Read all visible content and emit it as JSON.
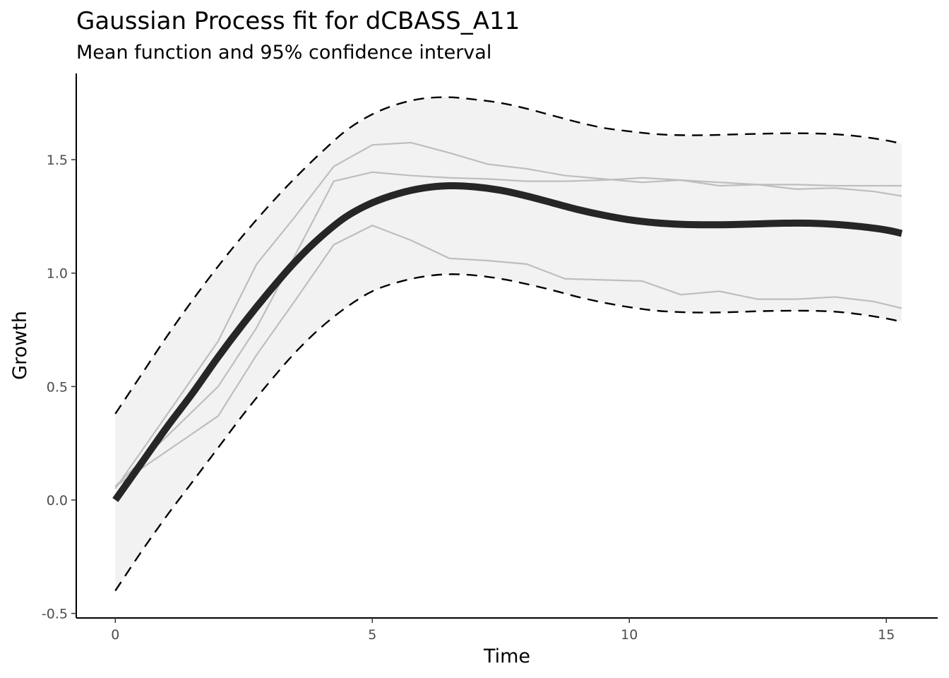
{
  "chart_data": {
    "type": "line",
    "title": "Gaussian Process fit for dCBASS_A11",
    "subtitle": "Mean function and 95% confidence interval",
    "xlabel": "Time",
    "ylabel": "Growth",
    "xlim": [
      -0.76,
      16.0
    ],
    "ylim": [
      -0.52,
      1.88
    ],
    "x_ticks": [
      0,
      5,
      10,
      15
    ],
    "x_tick_labels": [
      "0",
      "5",
      "10",
      "15"
    ],
    "y_ticks": [
      -0.5,
      0.0,
      0.5,
      1.0,
      1.5
    ],
    "y_tick_labels": [
      "-0.5",
      "0.0",
      "0.5",
      "1.0",
      "1.5"
    ],
    "grid": false,
    "legend": "none",
    "colors": {
      "mean": "#262626",
      "ci_band": "#f2f2f2",
      "ci_bounds": "#000000",
      "replicates": "#bebebe",
      "axis": "#000000",
      "tick_label": "#4d4d4d"
    },
    "mean": {
      "x": [
        0,
        0.5,
        1,
        1.5,
        2,
        2.5,
        3,
        3.5,
        4,
        4.5,
        5,
        5.5,
        6,
        6.5,
        7,
        7.5,
        8,
        8.5,
        9,
        9.5,
        10,
        10.5,
        11,
        11.5,
        12,
        12.5,
        13,
        13.5,
        14,
        14.5,
        15,
        15.3
      ],
      "y": [
        0.0,
        0.16,
        0.32,
        0.47,
        0.63,
        0.78,
        0.92,
        1.05,
        1.16,
        1.25,
        1.31,
        1.35,
        1.375,
        1.385,
        1.38,
        1.365,
        1.34,
        1.31,
        1.28,
        1.255,
        1.235,
        1.222,
        1.215,
        1.213,
        1.214,
        1.217,
        1.22,
        1.22,
        1.215,
        1.205,
        1.19,
        1.175
      ]
    },
    "ci_upper": {
      "x": [
        0,
        0.5,
        1,
        1.5,
        2,
        2.5,
        3,
        3.5,
        4,
        4.5,
        5,
        5.5,
        6,
        6.5,
        7,
        7.5,
        8,
        8.5,
        9,
        9.5,
        10,
        10.5,
        11,
        11.5,
        12,
        12.5,
        13,
        13.5,
        14,
        14.5,
        15,
        15.3
      ],
      "y": [
        0.38,
        0.55,
        0.72,
        0.88,
        1.03,
        1.17,
        1.3,
        1.42,
        1.53,
        1.63,
        1.7,
        1.745,
        1.77,
        1.775,
        1.765,
        1.75,
        1.725,
        1.695,
        1.665,
        1.64,
        1.625,
        1.613,
        1.608,
        1.608,
        1.611,
        1.614,
        1.616,
        1.616,
        1.612,
        1.602,
        1.585,
        1.57
      ]
    },
    "ci_lower": {
      "x": [
        0,
        0.5,
        1,
        1.5,
        2,
        2.5,
        3,
        3.5,
        4,
        4.5,
        5,
        5.5,
        6,
        6.5,
        7,
        7.5,
        8,
        8.5,
        9,
        9.5,
        10,
        10.5,
        11,
        11.5,
        12,
        12.5,
        13,
        13.5,
        14,
        14.5,
        15,
        15.3
      ],
      "y": [
        -0.4,
        -0.23,
        -0.07,
        0.08,
        0.23,
        0.38,
        0.52,
        0.65,
        0.76,
        0.85,
        0.92,
        0.96,
        0.985,
        0.995,
        0.99,
        0.975,
        0.952,
        0.925,
        0.895,
        0.87,
        0.85,
        0.835,
        0.828,
        0.826,
        0.828,
        0.832,
        0.834,
        0.834,
        0.83,
        0.818,
        0.8,
        0.785
      ]
    },
    "replicates": [
      {
        "x": [
          0,
          2,
          2.75,
          3.5,
          4.25,
          5,
          5.75,
          6.5,
          7.25,
          8,
          8.75,
          9.5,
          10.25,
          11,
          11.75,
          12.5,
          13.25,
          14,
          14.75,
          15.3
        ],
        "y": [
          0.05,
          0.7,
          1.04,
          1.25,
          1.47,
          1.565,
          1.575,
          1.53,
          1.48,
          1.46,
          1.43,
          1.415,
          1.4,
          1.41,
          1.385,
          1.39,
          1.37,
          1.375,
          1.36,
          1.34
        ]
      },
      {
        "x": [
          0,
          2,
          2.75,
          3.5,
          4.25,
          5,
          5.75,
          6.5,
          7.25,
          8,
          8.75,
          9.5,
          10.25,
          11,
          11.75,
          12.5,
          13.25,
          14,
          14.75,
          15.3
        ],
        "y": [
          0.06,
          0.5,
          0.76,
          1.08,
          1.405,
          1.445,
          1.43,
          1.42,
          1.415,
          1.405,
          1.405,
          1.41,
          1.42,
          1.41,
          1.4,
          1.39,
          1.39,
          1.385,
          1.385,
          1.385
        ]
      },
      {
        "x": [
          0,
          2,
          2.75,
          3.5,
          4.25,
          5,
          5.75,
          6.5,
          7.25,
          8,
          8.75,
          9.5,
          10.25,
          11,
          11.75,
          12.5,
          13.25,
          14,
          14.75,
          15.3
        ],
        "y": [
          0.06,
          0.37,
          0.64,
          0.88,
          1.125,
          1.21,
          1.145,
          1.065,
          1.055,
          1.04,
          0.975,
          0.97,
          0.965,
          0.905,
          0.92,
          0.885,
          0.885,
          0.895,
          0.875,
          0.845
        ]
      }
    ]
  }
}
